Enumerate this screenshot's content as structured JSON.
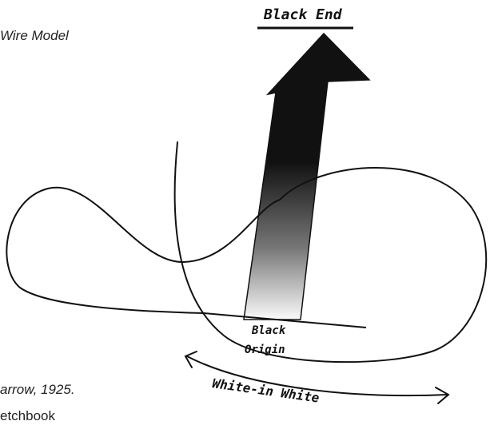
{
  "caption_top": "Wire Model",
  "labels": {
    "end": "Black End",
    "origin_line1": "Black",
    "origin_line2": "Origin",
    "sweep": "White-in White"
  },
  "caption_bottom": {
    "line1": "arrow, 1925.",
    "line2": "etchbook"
  }
}
